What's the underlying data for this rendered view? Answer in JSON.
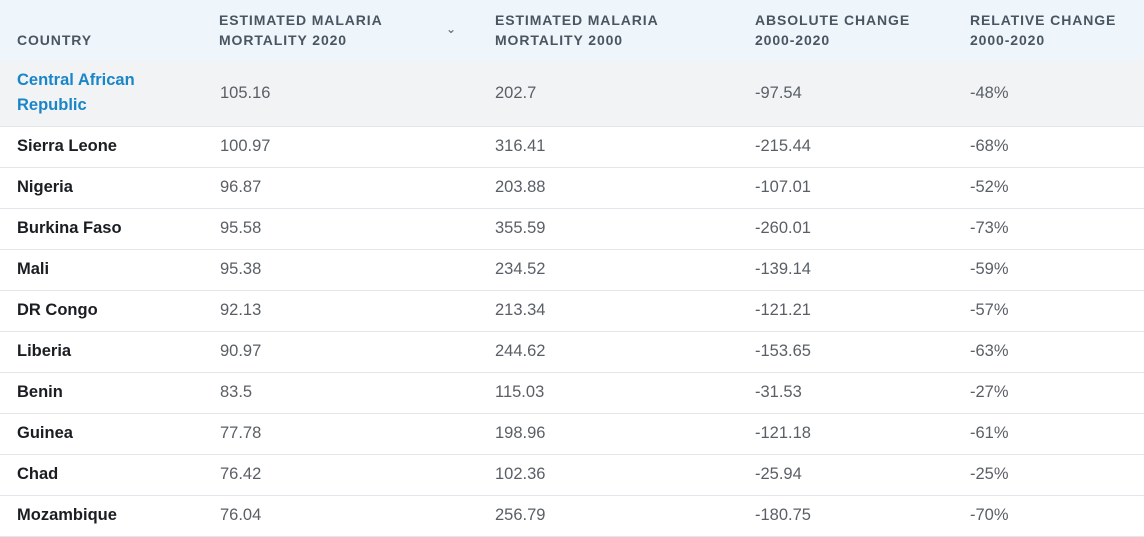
{
  "table": {
    "headers": [
      "COUNTRY",
      "ESTIMATED MALARIA MORTALITY 2020",
      "ESTIMATED MALARIA MORTALITY 2000",
      "ABSOLUTE CHANGE 2000-2020",
      "RELATIVE CHANGE 2000-2020"
    ],
    "sort_icon": "chevron-down-icon",
    "rows": [
      {
        "country": "Central African Republic",
        "m2020": "105.16",
        "m2000": "202.7",
        "abs": "-97.54",
        "rel": "-48%"
      },
      {
        "country": "Sierra Leone",
        "m2020": "100.97",
        "m2000": "316.41",
        "abs": "-215.44",
        "rel": "-68%"
      },
      {
        "country": "Nigeria",
        "m2020": "96.87",
        "m2000": "203.88",
        "abs": "-107.01",
        "rel": "-52%"
      },
      {
        "country": "Burkina Faso",
        "m2020": "95.58",
        "m2000": "355.59",
        "abs": "-260.01",
        "rel": "-73%"
      },
      {
        "country": "Mali",
        "m2020": "95.38",
        "m2000": "234.52",
        "abs": "-139.14",
        "rel": "-59%"
      },
      {
        "country": "DR Congo",
        "m2020": "92.13",
        "m2000": "213.34",
        "abs": "-121.21",
        "rel": "-57%"
      },
      {
        "country": "Liberia",
        "m2020": "90.97",
        "m2000": "244.62",
        "abs": "-153.65",
        "rel": "-63%"
      },
      {
        "country": "Benin",
        "m2020": "83.5",
        "m2000": "115.03",
        "abs": "-31.53",
        "rel": "-27%"
      },
      {
        "country": "Guinea",
        "m2020": "77.78",
        "m2000": "198.96",
        "abs": "-121.18",
        "rel": "-61%"
      },
      {
        "country": "Chad",
        "m2020": "76.42",
        "m2000": "102.36",
        "abs": "-25.94",
        "rel": "-25%"
      },
      {
        "country": "Mozambique",
        "m2020": "76.04",
        "m2000": "256.79",
        "abs": "-180.75",
        "rel": "-70%"
      }
    ]
  },
  "colors": {
    "header_bg": "#eef6fc",
    "link": "#1a86c7",
    "highlight_row_bg": "#f2f3f5"
  }
}
